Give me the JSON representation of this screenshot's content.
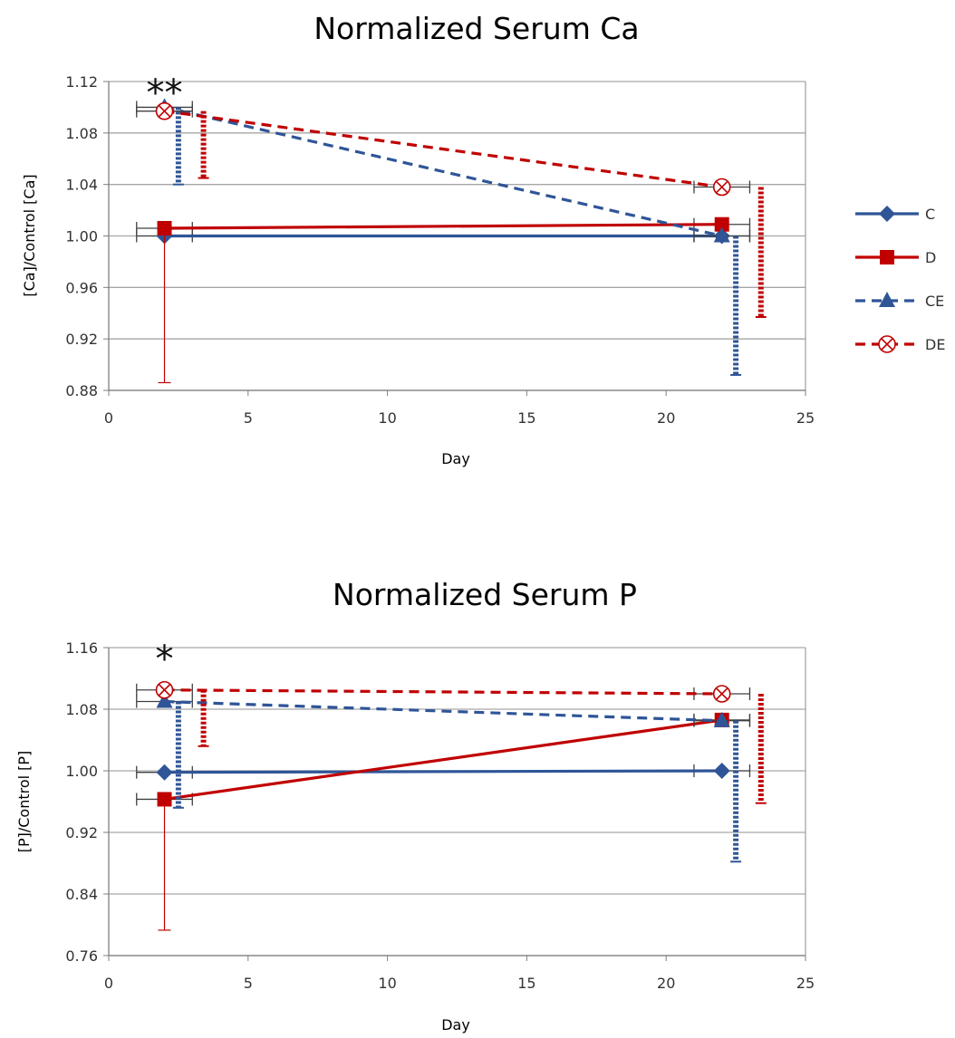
{
  "colors": {
    "C": "#2f5597",
    "D": "#c00000",
    "CE": "#2f5597",
    "DE": "#c00000",
    "grid": "#a6a6a6",
    "axis": "#7f7f7f",
    "error_bar_x": "#404040"
  },
  "chart_data": [
    {
      "type": "line",
      "title": "Normalized Serum Ca",
      "xlabel": "Day",
      "ylabel": "[Ca]/Control [Ca]",
      "xlim": [
        0,
        25
      ],
      "ylim": [
        0.88,
        1.12
      ],
      "xticks": [
        "0",
        "5",
        "10",
        "15",
        "20",
        "25"
      ],
      "xtick_values": [
        0,
        5,
        10,
        15,
        20,
        25
      ],
      "yticks": [
        "0.88",
        "0.92",
        "0.96",
        "1.00",
        "1.04",
        "1.08",
        "1.12"
      ],
      "ytick_values": [
        0.88,
        0.92,
        0.96,
        1.0,
        1.04,
        1.08,
        1.12
      ],
      "grid": true,
      "legend_position": "right",
      "annotation": {
        "text": "**",
        "x": 2,
        "y": 1.12
      },
      "series": [
        {
          "name": "C",
          "marker": "diamond",
          "dashed": false,
          "points": [
            {
              "x": 2,
              "y": 1.0,
              "xerr": 1,
              "y_low": 1.0,
              "y_high": 1.0
            },
            {
              "x": 22,
              "y": 1.0,
              "xerr": 1,
              "y_low": 1.0,
              "y_high": 1.0
            }
          ]
        },
        {
          "name": "D",
          "marker": "square",
          "dashed": false,
          "points": [
            {
              "x": 2,
              "y": 1.006,
              "xerr": 1,
              "y_low": 0.886,
              "y_high": 1.006
            },
            {
              "x": 22,
              "y": 1.009,
              "xerr": 1,
              "y_low": 1.009,
              "y_high": 1.009
            }
          ]
        },
        {
          "name": "CE",
          "marker": "triangle",
          "dashed": true,
          "points": [
            {
              "x": 2,
              "y": 1.1,
              "xerr": 1,
              "y_low": 1.04,
              "y_high": 1.1
            },
            {
              "x": 22,
              "y": 1.0,
              "xerr": 1,
              "y_low": 0.892,
              "y_high": 1.0
            }
          ]
        },
        {
          "name": "DE",
          "marker": "x-circle",
          "dashed": true,
          "points": [
            {
              "x": 2,
              "y": 1.097,
              "xerr": 1,
              "y_low": 1.045,
              "y_high": 1.097
            },
            {
              "x": 22,
              "y": 1.038,
              "xerr": 1,
              "y_low": 0.937,
              "y_high": 1.038
            }
          ]
        }
      ]
    },
    {
      "type": "line",
      "title": "Normalized Serum P",
      "xlabel": "Day",
      "ylabel": "[P]/Control [P]",
      "xlim": [
        0,
        25
      ],
      "ylim": [
        0.76,
        1.16
      ],
      "xticks": [
        "0",
        "5",
        "10",
        "15",
        "20",
        "25"
      ],
      "xtick_values": [
        0,
        5,
        10,
        15,
        20,
        25
      ],
      "yticks": [
        "0.76",
        "0.84",
        "0.92",
        "1.00",
        "1.08",
        "1.16"
      ],
      "ytick_values": [
        0.76,
        0.84,
        0.92,
        1.0,
        1.08,
        1.16
      ],
      "grid": true,
      "legend_position": "none",
      "annotation": {
        "text": "*",
        "x": 2,
        "y": 1.16
      },
      "series": [
        {
          "name": "C",
          "marker": "diamond",
          "dashed": false,
          "points": [
            {
              "x": 2,
              "y": 0.998,
              "xerr": 1,
              "y_low": 0.998,
              "y_high": 0.998
            },
            {
              "x": 22,
              "y": 1.0,
              "xerr": 1,
              "y_low": 1.0,
              "y_high": 1.0
            }
          ]
        },
        {
          "name": "D",
          "marker": "square",
          "dashed": false,
          "points": [
            {
              "x": 2,
              "y": 0.963,
              "xerr": 1,
              "y_low": 0.793,
              "y_high": 0.963
            },
            {
              "x": 22,
              "y": 1.066,
              "xerr": 1,
              "y_low": 1.066,
              "y_high": 1.066
            }
          ]
        },
        {
          "name": "CE",
          "marker": "triangle",
          "dashed": true,
          "points": [
            {
              "x": 2,
              "y": 1.09,
              "xerr": 1,
              "y_low": 0.952,
              "y_high": 1.09
            },
            {
              "x": 22,
              "y": 1.065,
              "xerr": 1,
              "y_low": 0.882,
              "y_high": 1.065
            }
          ]
        },
        {
          "name": "DE",
          "marker": "x-circle",
          "dashed": true,
          "points": [
            {
              "x": 2,
              "y": 1.105,
              "xerr": 1,
              "y_low": 1.032,
              "y_high": 1.105
            },
            {
              "x": 22,
              "y": 1.1,
              "xerr": 1,
              "y_low": 0.958,
              "y_high": 1.1
            }
          ]
        }
      ]
    }
  ],
  "legend": {
    "items": [
      {
        "label": "C",
        "marker": "diamond",
        "dashed": false
      },
      {
        "label": "D",
        "marker": "square",
        "dashed": false
      },
      {
        "label": "CE",
        "marker": "triangle",
        "dashed": true
      },
      {
        "label": "DE",
        "marker": "x-circle",
        "dashed": true
      }
    ]
  }
}
